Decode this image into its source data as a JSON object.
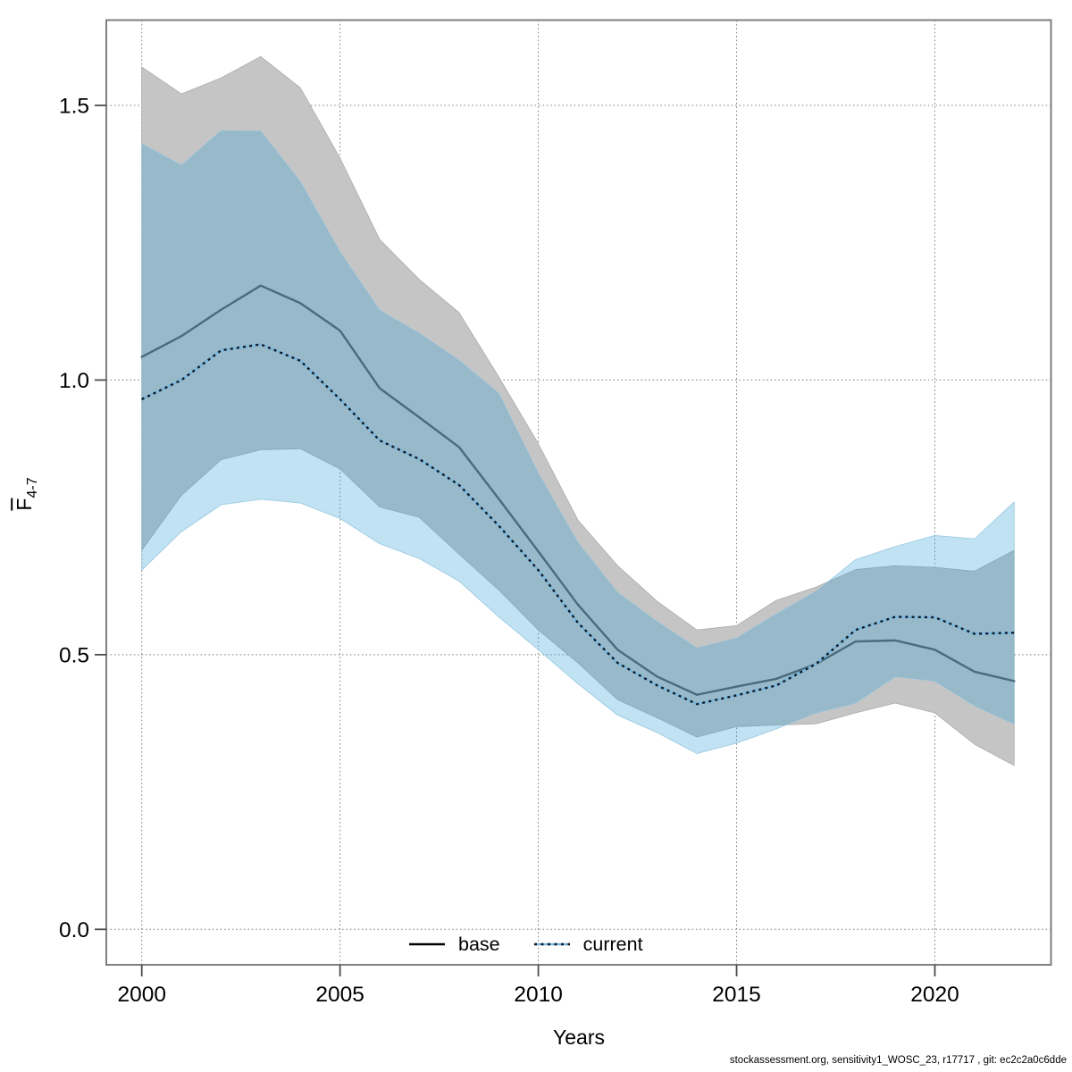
{
  "figure": {
    "footer_text": "stockassessment.org, sensitivity1_WOSC_23, r17717 , git: ec2c2a0c6dde"
  },
  "chart_data": {
    "type": "line",
    "title": "",
    "xlabel": "Years",
    "ylabel": "F-bar(4-7)",
    "ylabel_main": "F",
    "ylabel_sub": "4-7",
    "grid": true,
    "legend_position": "bottom-center-inside",
    "xlim": [
      1999.1,
      2023.0
    ],
    "ylim": [
      -0.065,
      1.655
    ],
    "xticks": [
      2000,
      2005,
      2010,
      2015,
      2020
    ],
    "yticks": [
      0.0,
      0.5,
      1.0,
      1.5
    ],
    "ytick_labels": [
      "0.0",
      "0.5",
      "1.0",
      "1.5"
    ],
    "x": [
      2000,
      2001,
      2002,
      2003,
      2004,
      2005,
      2006,
      2007,
      2008,
      2009,
      2010,
      2011,
      2012,
      2013,
      2014,
      2015,
      2016,
      2017,
      2018,
      2019,
      2020,
      2021,
      2022
    ],
    "series": [
      {
        "name": "base",
        "style": "solid",
        "line_color": "#4a6b7c",
        "legend_color": "#000000",
        "values": [
          1.042,
          1.08,
          1.128,
          1.172,
          1.14,
          1.09,
          0.985,
          0.932,
          0.878,
          0.784,
          0.688,
          0.591,
          0.509,
          0.46,
          0.427,
          0.442,
          0.456,
          0.483,
          0.524,
          0.526,
          0.509,
          0.469,
          0.452
        ],
        "band": {
          "label": "base confidence band",
          "fill": "#c5c5c5",
          "fill_opacity": 1.0,
          "edge": "#a6a6a6",
          "upper": [
            1.57,
            1.521,
            1.55,
            1.589,
            1.532,
            1.404,
            1.256,
            1.183,
            1.123,
            1.006,
            0.884,
            0.745,
            0.662,
            0.597,
            0.545,
            0.553,
            0.599,
            0.623,
            0.655,
            0.662,
            0.659,
            0.652,
            0.69
          ],
          "lower": [
            0.69,
            0.79,
            0.855,
            0.873,
            0.875,
            0.838,
            0.769,
            0.75,
            0.683,
            0.618,
            0.545,
            0.485,
            0.418,
            0.385,
            0.35,
            0.369,
            0.372,
            0.374,
            0.394,
            0.412,
            0.394,
            0.337,
            0.298
          ]
        }
      },
      {
        "name": "current",
        "style": "dotted",
        "line_color": "#0d1b29",
        "underlay_color": "#79b6de",
        "legend_color": "#79b6de",
        "values": [
          0.965,
          1.0,
          1.054,
          1.065,
          1.035,
          0.965,
          0.89,
          0.856,
          0.809,
          0.735,
          0.654,
          0.558,
          0.485,
          0.444,
          0.41,
          0.426,
          0.444,
          0.483,
          0.545,
          0.569,
          0.568,
          0.538,
          0.54
        ],
        "band": {
          "label": "current confidence band",
          "fill": "#2e9fd4",
          "fill_opacity": 0.3,
          "edge": "#8fc3de",
          "upper": [
            1.43,
            1.391,
            1.454,
            1.453,
            1.361,
            1.233,
            1.127,
            1.085,
            1.036,
            0.976,
            0.83,
            0.704,
            0.613,
            0.56,
            0.512,
            0.53,
            0.574,
            0.615,
            0.673,
            0.697,
            0.717,
            0.711,
            0.778
          ],
          "lower": [
            0.654,
            0.724,
            0.773,
            0.783,
            0.776,
            0.748,
            0.702,
            0.675,
            0.634,
            0.569,
            0.509,
            0.447,
            0.39,
            0.358,
            0.32,
            0.339,
            0.365,
            0.394,
            0.412,
            0.46,
            0.452,
            0.407,
            0.374
          ]
        }
      }
    ]
  }
}
